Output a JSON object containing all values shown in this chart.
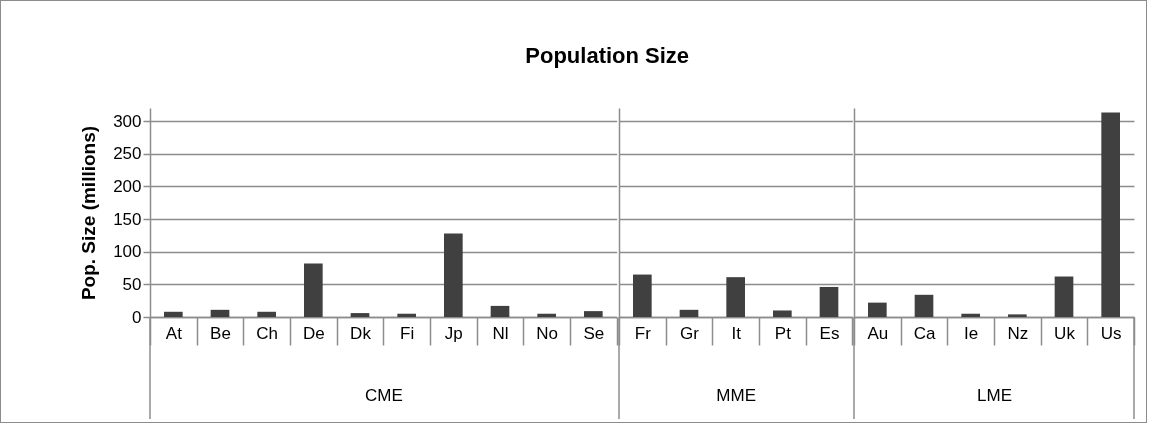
{
  "chart_data": [
    {
      "type": "bar",
      "title": "Population Size",
      "ylabel": "Pop. Size (millions)",
      "xlabel": "CME",
      "categories": [
        "At",
        "Be",
        "Ch",
        "De",
        "Dk",
        "Fi",
        "Jp",
        "Nl",
        "No",
        "Se"
      ],
      "values": [
        8,
        11,
        8,
        82,
        6,
        5,
        128,
        17,
        5,
        9
      ],
      "color": "#404040",
      "ylim": [
        0,
        320
      ],
      "yticks": [
        0,
        50,
        100,
        150,
        200,
        250,
        300
      ],
      "grid": "y"
    },
    {
      "type": "bar",
      "xlabel": "MME",
      "categories": [
        "Fr",
        "Gr",
        "It",
        "Pt",
        "Es"
      ],
      "values": [
        65,
        11,
        61,
        10,
        46
      ],
      "color": "#404040",
      "ylim": [
        0,
        320
      ],
      "yticks": [
        0,
        50,
        100,
        150,
        200,
        250,
        300
      ],
      "grid": "y",
      "tick_labels": "x"
    },
    {
      "type": "bar",
      "xlabel": "LME",
      "categories": [
        "Au",
        "Ca",
        "Ie",
        "Nz",
        "Uk",
        "Us"
      ],
      "values": [
        22,
        34,
        5,
        4,
        62,
        313
      ],
      "color": "#404040",
      "ylim": [
        0,
        320
      ],
      "yticks": [
        0,
        50,
        100,
        150,
        200,
        250,
        300
      ],
      "grid": "y",
      "tick_labels": "x"
    }
  ]
}
